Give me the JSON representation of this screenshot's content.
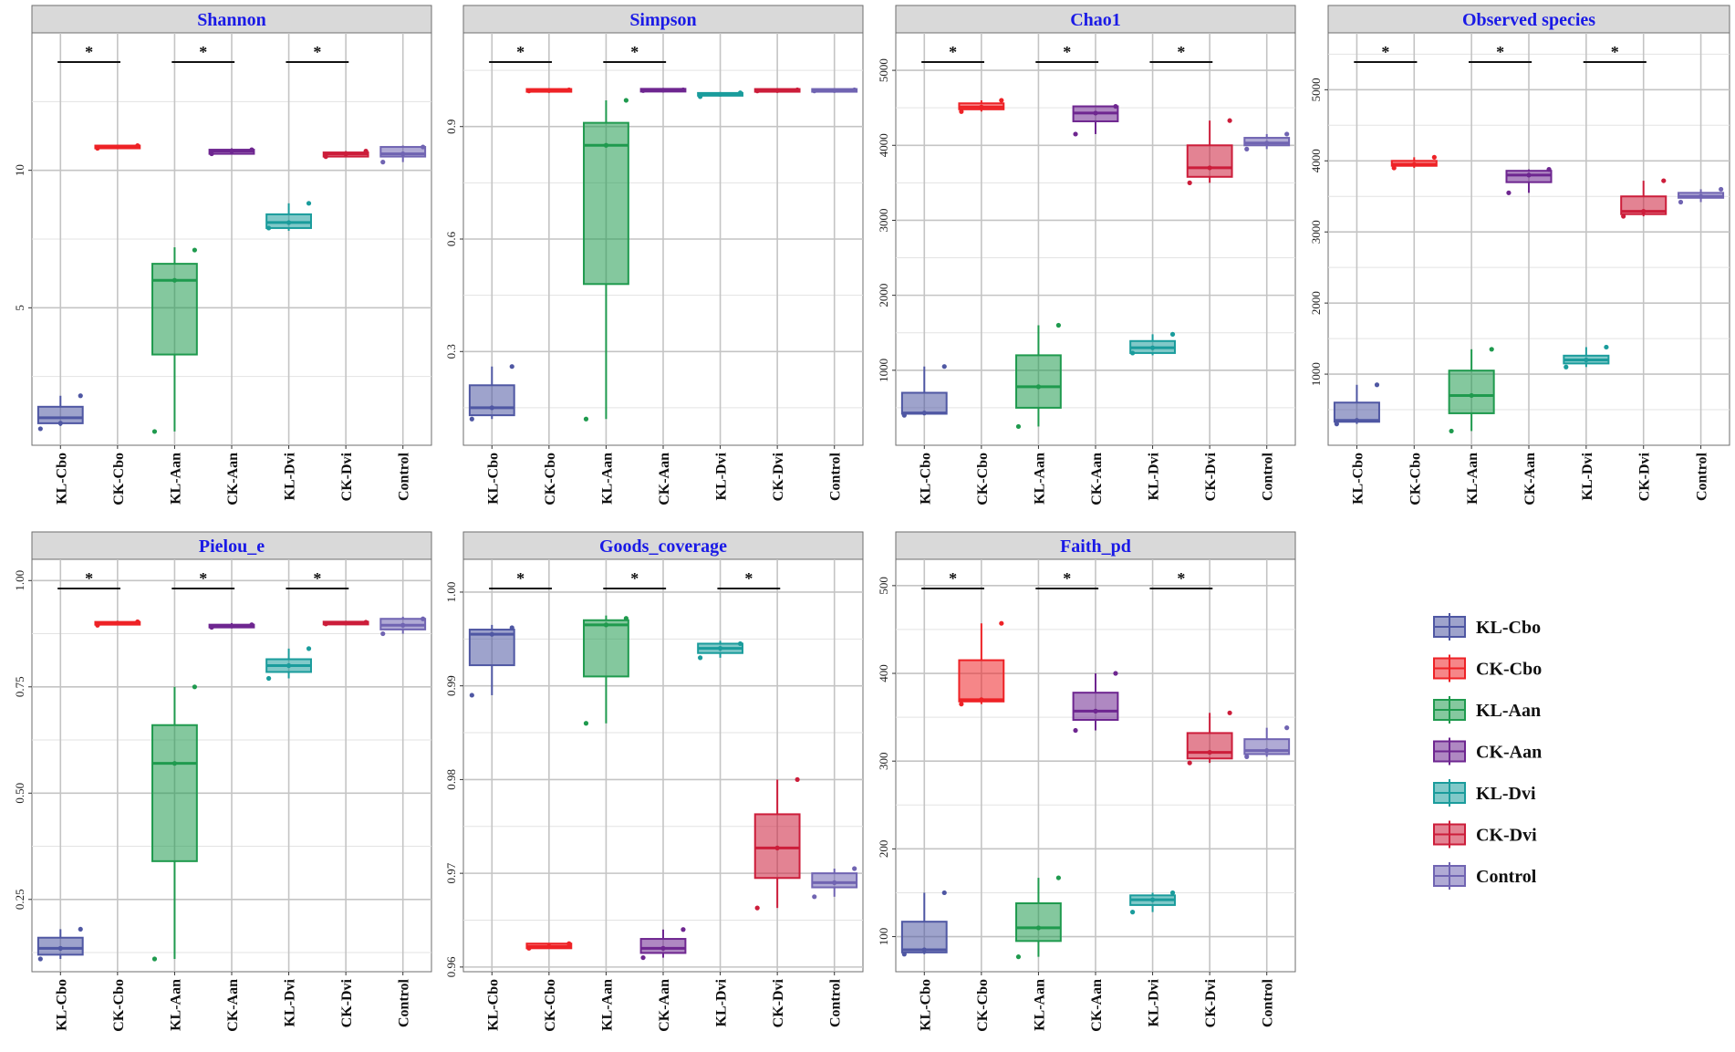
{
  "colors": {
    "KL-Cbo": "#4f57a3",
    "CK-Cbo": "#ee2226",
    "KL-Aan": "#1f9a4e",
    "CK-Aan": "#6e2690",
    "KL-Dvi": "#1a9c9c",
    "CK-Dvi": "#cc1d3a",
    "Control": "#7064b2",
    "title_text": "#1a1ae6",
    "strip_fill": "#d9d9d9"
  },
  "legend": [
    "KL-Cbo",
    "CK-Cbo",
    "KL-Aan",
    "CK-Aan",
    "KL-Dvi",
    "CK-Dvi",
    "Control"
  ],
  "chart_data": [
    {
      "type": "box",
      "title": "Shannon",
      "categories": [
        "KL-Cbo",
        "CK-Cbo",
        "KL-Aan",
        "CK-Aan",
        "KL-Dvi",
        "CK-Dvi",
        "Control"
      ],
      "ylim": [
        0,
        15
      ],
      "yticks": [
        5,
        10
      ],
      "ytick_labels": [
        "5",
        "10"
      ],
      "boxes": [
        {
          "min": 0.7,
          "q1": 0.8,
          "median": 1.0,
          "q3": 1.4,
          "max": 1.8,
          "points": [
            0.6,
            0.8,
            1.8
          ]
        },
        {
          "min": 10.8,
          "q1": 10.8,
          "median": 10.85,
          "q3": 10.9,
          "max": 10.9,
          "points": [
            10.8,
            10.85,
            10.9
          ]
        },
        {
          "min": 0.5,
          "q1": 3.3,
          "median": 6.0,
          "q3": 6.6,
          "max": 7.2,
          "points": [
            0.5,
            6.0,
            7.1
          ]
        },
        {
          "min": 10.6,
          "q1": 10.6,
          "median": 10.7,
          "q3": 10.75,
          "max": 10.8,
          "points": [
            10.6,
            10.7,
            10.75
          ]
        },
        {
          "min": 7.8,
          "q1": 7.9,
          "median": 8.1,
          "q3": 8.4,
          "max": 8.8,
          "points": [
            7.9,
            8.1,
            8.8
          ]
        },
        {
          "min": 10.5,
          "q1": 10.5,
          "median": 10.6,
          "q3": 10.65,
          "max": 10.7,
          "points": [
            10.5,
            10.6,
            10.7
          ]
        },
        {
          "min": 10.3,
          "q1": 10.5,
          "median": 10.6,
          "q3": 10.85,
          "max": 10.9,
          "points": [
            10.3,
            10.6,
            10.85
          ]
        }
      ],
      "significance": [
        {
          "from": 0,
          "to": 1,
          "label": "*"
        },
        {
          "from": 2,
          "to": 3,
          "label": "*"
        },
        {
          "from": 4,
          "to": 5,
          "label": "*"
        }
      ]
    },
    {
      "type": "box",
      "title": "Simpson",
      "categories": [
        "KL-Cbo",
        "CK-Cbo",
        "KL-Aan",
        "CK-Aan",
        "KL-Dvi",
        "CK-Dvi",
        "Control"
      ],
      "ylim": [
        0.05,
        1.15
      ],
      "yticks": [
        0.3,
        0.6,
        0.9
      ],
      "ytick_labels": [
        "0.3",
        "0.6",
        "0.9"
      ],
      "boxes": [
        {
          "min": 0.12,
          "q1": 0.13,
          "median": 0.15,
          "q3": 0.21,
          "max": 0.26,
          "points": [
            0.12,
            0.15,
            0.26
          ]
        },
        {
          "min": 0.995,
          "q1": 0.995,
          "median": 0.996,
          "q3": 0.998,
          "max": 0.998,
          "points": [
            0.995,
            0.996,
            0.998
          ]
        },
        {
          "min": 0.12,
          "q1": 0.48,
          "median": 0.85,
          "q3": 0.91,
          "max": 0.97,
          "points": [
            0.12,
            0.85,
            0.97
          ]
        },
        {
          "min": 0.996,
          "q1": 0.996,
          "median": 0.997,
          "q3": 0.998,
          "max": 0.998,
          "points": [
            0.996,
            0.997,
            0.998
          ]
        },
        {
          "min": 0.98,
          "q1": 0.983,
          "median": 0.986,
          "q3": 0.989,
          "max": 0.99,
          "points": [
            0.98,
            0.986,
            0.99
          ]
        },
        {
          "min": 0.995,
          "q1": 0.995,
          "median": 0.996,
          "q3": 0.998,
          "max": 0.998,
          "points": [
            0.995,
            0.996,
            0.998
          ]
        },
        {
          "min": 0.995,
          "q1": 0.995,
          "median": 0.996,
          "q3": 0.998,
          "max": 0.998,
          "points": [
            0.995,
            0.996,
            0.998
          ]
        }
      ],
      "significance": [
        {
          "from": 0,
          "to": 1,
          "label": "*"
        },
        {
          "from": 2,
          "to": 3,
          "label": "*"
        }
      ]
    },
    {
      "type": "box",
      "title": "Chao1",
      "categories": [
        "KL-Cbo",
        "CK-Cbo",
        "KL-Aan",
        "CK-Aan",
        "KL-Dvi",
        "CK-Dvi",
        "Control"
      ],
      "ylim": [
        0,
        5500
      ],
      "yticks": [
        1000,
        2000,
        3000,
        4000,
        5000
      ],
      "ytick_labels": [
        "1000",
        "2000",
        "3000",
        "4000",
        "5000"
      ],
      "boxes": [
        {
          "min": 400,
          "q1": 420,
          "median": 430,
          "q3": 700,
          "max": 1050,
          "points": [
            400,
            430,
            1050
          ]
        },
        {
          "min": 4450,
          "q1": 4480,
          "median": 4510,
          "q3": 4560,
          "max": 4600,
          "points": [
            4450,
            4510,
            4600
          ]
        },
        {
          "min": 250,
          "q1": 500,
          "median": 780,
          "q3": 1200,
          "max": 1600,
          "points": [
            250,
            780,
            1600
          ]
        },
        {
          "min": 4150,
          "q1": 4320,
          "median": 4430,
          "q3": 4520,
          "max": 4530,
          "points": [
            4150,
            4430,
            4520
          ]
        },
        {
          "min": 1200,
          "q1": 1230,
          "median": 1300,
          "q3": 1390,
          "max": 1480,
          "points": [
            1230,
            1300,
            1480
          ]
        },
        {
          "min": 3500,
          "q1": 3580,
          "median": 3700,
          "q3": 4000,
          "max": 4330,
          "points": [
            3500,
            3700,
            4330
          ]
        },
        {
          "min": 3950,
          "q1": 4000,
          "median": 4030,
          "q3": 4100,
          "max": 4150,
          "points": [
            3950,
            4030,
            4150
          ]
        }
      ],
      "significance": [
        {
          "from": 0,
          "to": 1,
          "label": "*"
        },
        {
          "from": 2,
          "to": 3,
          "label": "*"
        },
        {
          "from": 4,
          "to": 5,
          "label": "*"
        }
      ]
    },
    {
      "type": "box",
      "title": "Observed species",
      "categories": [
        "KL-Cbo",
        "CK-Cbo",
        "KL-Aan",
        "CK-Aan",
        "KL-Dvi",
        "CK-Dvi",
        "Control"
      ],
      "ylim": [
        0,
        5800
      ],
      "yticks": [
        1000,
        2000,
        3000,
        4000,
        5000
      ],
      "ytick_labels": [
        "1000",
        "2000",
        "3000",
        "4000",
        "5000"
      ],
      "boxes": [
        {
          "min": 300,
          "q1": 330,
          "median": 350,
          "q3": 600,
          "max": 850,
          "points": [
            300,
            350,
            850
          ]
        },
        {
          "min": 3900,
          "q1": 3930,
          "median": 3950,
          "q3": 4000,
          "max": 4050,
          "points": [
            3900,
            3950,
            4050
          ]
        },
        {
          "min": 200,
          "q1": 450,
          "median": 700,
          "q3": 1050,
          "max": 1350,
          "points": [
            200,
            700,
            1350
          ]
        },
        {
          "min": 3550,
          "q1": 3700,
          "median": 3800,
          "q3": 3860,
          "max": 3880,
          "points": [
            3550,
            3800,
            3880
          ]
        },
        {
          "min": 1100,
          "q1": 1150,
          "median": 1200,
          "q3": 1260,
          "max": 1380,
          "points": [
            1100,
            1200,
            1380
          ]
        },
        {
          "min": 3220,
          "q1": 3250,
          "median": 3290,
          "q3": 3500,
          "max": 3720,
          "points": [
            3220,
            3290,
            3720
          ]
        },
        {
          "min": 3420,
          "q1": 3480,
          "median": 3500,
          "q3": 3550,
          "max": 3600,
          "points": [
            3420,
            3500,
            3600
          ]
        }
      ],
      "significance": [
        {
          "from": 0,
          "to": 1,
          "label": "*"
        },
        {
          "from": 2,
          "to": 3,
          "label": "*"
        },
        {
          "from": 4,
          "to": 5,
          "label": "*"
        }
      ]
    },
    {
      "type": "box",
      "title": "Pielou_e",
      "categories": [
        "KL-Cbo",
        "CK-Cbo",
        "KL-Aan",
        "CK-Aan",
        "KL-Dvi",
        "CK-Dvi",
        "Control"
      ],
      "ylim": [
        0.08,
        1.05
      ],
      "yticks": [
        0.25,
        0.5,
        0.75,
        1.0
      ],
      "ytick_labels": [
        "0.25",
        "0.50",
        "0.75",
        "1.00"
      ],
      "boxes": [
        {
          "min": 0.11,
          "q1": 0.12,
          "median": 0.135,
          "q3": 0.16,
          "max": 0.18,
          "points": [
            0.11,
            0.135,
            0.18
          ]
        },
        {
          "min": 0.895,
          "q1": 0.897,
          "median": 0.9,
          "q3": 0.902,
          "max": 0.903,
          "points": [
            0.895,
            0.9,
            0.903
          ]
        },
        {
          "min": 0.11,
          "q1": 0.34,
          "median": 0.57,
          "q3": 0.66,
          "max": 0.75,
          "points": [
            0.11,
            0.57,
            0.75
          ]
        },
        {
          "min": 0.89,
          "q1": 0.89,
          "median": 0.893,
          "q3": 0.896,
          "max": 0.9,
          "points": [
            0.89,
            0.893,
            0.896
          ]
        },
        {
          "min": 0.77,
          "q1": 0.785,
          "median": 0.8,
          "q3": 0.815,
          "max": 0.84,
          "points": [
            0.77,
            0.8,
            0.84
          ]
        },
        {
          "min": 0.898,
          "q1": 0.898,
          "median": 0.9,
          "q3": 0.902,
          "max": 0.902,
          "points": [
            0.898,
            0.9,
            0.902
          ]
        },
        {
          "min": 0.875,
          "q1": 0.885,
          "median": 0.895,
          "q3": 0.91,
          "max": 0.915,
          "points": [
            0.875,
            0.895,
            0.91
          ]
        }
      ],
      "significance": [
        {
          "from": 0,
          "to": 1,
          "label": "*"
        },
        {
          "from": 2,
          "to": 3,
          "label": "*"
        },
        {
          "from": 4,
          "to": 5,
          "label": "*"
        }
      ]
    },
    {
      "type": "box",
      "title": "Goods_coverage",
      "categories": [
        "KL-Cbo",
        "CK-Cbo",
        "KL-Aan",
        "CK-Aan",
        "KL-Dvi",
        "CK-Dvi",
        "Control"
      ],
      "ylim": [
        0.9595,
        1.0035
      ],
      "yticks": [
        0.96,
        0.97,
        0.98,
        0.99,
        1.0
      ],
      "ytick_labels": [
        "0.96",
        "0.97",
        "0.98",
        "0.99",
        "1.00"
      ],
      "boxes": [
        {
          "min": 0.989,
          "q1": 0.9922,
          "median": 0.9955,
          "q3": 0.996,
          "max": 0.9965,
          "points": [
            0.989,
            0.9955,
            0.9962
          ]
        },
        {
          "min": 0.962,
          "q1": 0.962,
          "median": 0.9622,
          "q3": 0.9625,
          "max": 0.9625,
          "points": [
            0.962,
            0.9622,
            0.9625
          ]
        },
        {
          "min": 0.986,
          "q1": 0.991,
          "median": 0.9965,
          "q3": 0.997,
          "max": 0.9975,
          "points": [
            0.986,
            0.9965,
            0.9972
          ]
        },
        {
          "min": 0.961,
          "q1": 0.9615,
          "median": 0.962,
          "q3": 0.963,
          "max": 0.964,
          "points": [
            0.961,
            0.962,
            0.964
          ]
        },
        {
          "min": 0.993,
          "q1": 0.9935,
          "median": 0.994,
          "q3": 0.9945,
          "max": 0.9948,
          "points": [
            0.993,
            0.994,
            0.9945
          ]
        },
        {
          "min": 0.9663,
          "q1": 0.9695,
          "median": 0.9727,
          "q3": 0.9763,
          "max": 0.98,
          "points": [
            0.9663,
            0.9727,
            0.98
          ]
        },
        {
          "min": 0.9675,
          "q1": 0.9685,
          "median": 0.969,
          "q3": 0.97,
          "max": 0.9705,
          "points": [
            0.9675,
            0.969,
            0.9705
          ]
        }
      ],
      "significance": [
        {
          "from": 0,
          "to": 1,
          "label": "*"
        },
        {
          "from": 2,
          "to": 3,
          "label": "*"
        },
        {
          "from": 4,
          "to": 5,
          "label": "*"
        }
      ]
    },
    {
      "type": "box",
      "title": "Faith_pd",
      "categories": [
        "KL-Cbo",
        "CK-Cbo",
        "KL-Aan",
        "CK-Aan",
        "KL-Dvi",
        "CK-Dvi",
        "Control"
      ],
      "ylim": [
        60,
        530
      ],
      "yticks": [
        100,
        200,
        300,
        400,
        500
      ],
      "ytick_labels": [
        "100",
        "200",
        "300",
        "400",
        "500"
      ],
      "boxes": [
        {
          "min": 80,
          "q1": 82,
          "median": 85,
          "q3": 117,
          "max": 150,
          "points": [
            80,
            85,
            150
          ]
        },
        {
          "min": 365,
          "q1": 368,
          "median": 370,
          "q3": 415,
          "max": 457,
          "points": [
            365,
            370,
            457
          ]
        },
        {
          "min": 77,
          "q1": 95,
          "median": 110,
          "q3": 138,
          "max": 167,
          "points": [
            77,
            110,
            167
          ]
        },
        {
          "min": 335,
          "q1": 347,
          "median": 357,
          "q3": 378,
          "max": 400,
          "points": [
            335,
            357,
            400
          ]
        },
        {
          "min": 128,
          "q1": 136,
          "median": 142,
          "q3": 147,
          "max": 150,
          "points": [
            128,
            142,
            150
          ]
        },
        {
          "min": 298,
          "q1": 303,
          "median": 310,
          "q3": 332,
          "max": 355,
          "points": [
            298,
            310,
            355
          ]
        },
        {
          "min": 305,
          "q1": 308,
          "median": 312,
          "q3": 325,
          "max": 338,
          "points": [
            305,
            312,
            338
          ]
        }
      ],
      "significance": [
        {
          "from": 0,
          "to": 1,
          "label": "*"
        },
        {
          "from": 2,
          "to": 3,
          "label": "*"
        },
        {
          "from": 4,
          "to": 5,
          "label": "*"
        }
      ]
    }
  ]
}
